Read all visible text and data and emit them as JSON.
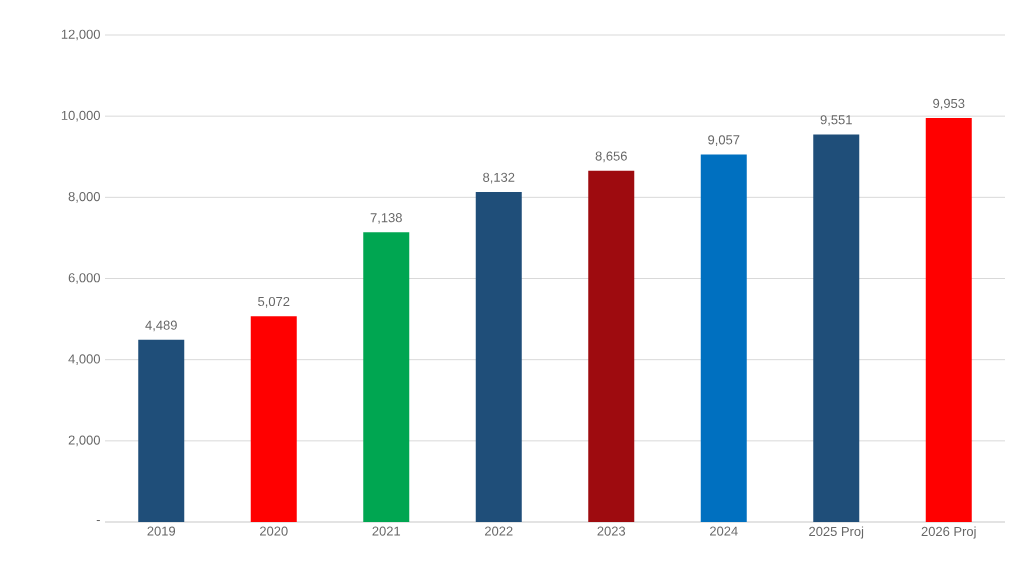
{
  "chart_data": {
    "type": "bar",
    "categories": [
      "2019",
      "2020",
      "2021",
      "2022",
      "2023",
      "2024",
      "2025 Proj",
      "2026 Proj"
    ],
    "values": [
      4489,
      5072,
      7138,
      8132,
      8656,
      9057,
      9551,
      9953
    ],
    "value_labels": [
      "4,489",
      "5,072",
      "7,138",
      "8,132",
      "8,656",
      "9,057",
      "9,551",
      "9,953"
    ],
    "colors": [
      "#1f4e79",
      "#ff0000",
      "#00a651",
      "#1f4e79",
      "#9e0b0f",
      "#0070c0",
      "#1f4e79",
      "#ff0000"
    ],
    "ylim": [
      0,
      12000
    ],
    "yticks": [
      {
        "value": 0,
        "label": "-"
      },
      {
        "value": 2000,
        "label": "2,000"
      },
      {
        "value": 4000,
        "label": "4,000"
      },
      {
        "value": 6000,
        "label": "6,000"
      },
      {
        "value": 8000,
        "label": "8,000"
      },
      {
        "value": 10000,
        "label": "10,000"
      },
      {
        "value": 12000,
        "label": "12,000"
      }
    ],
    "grid": "y"
  }
}
